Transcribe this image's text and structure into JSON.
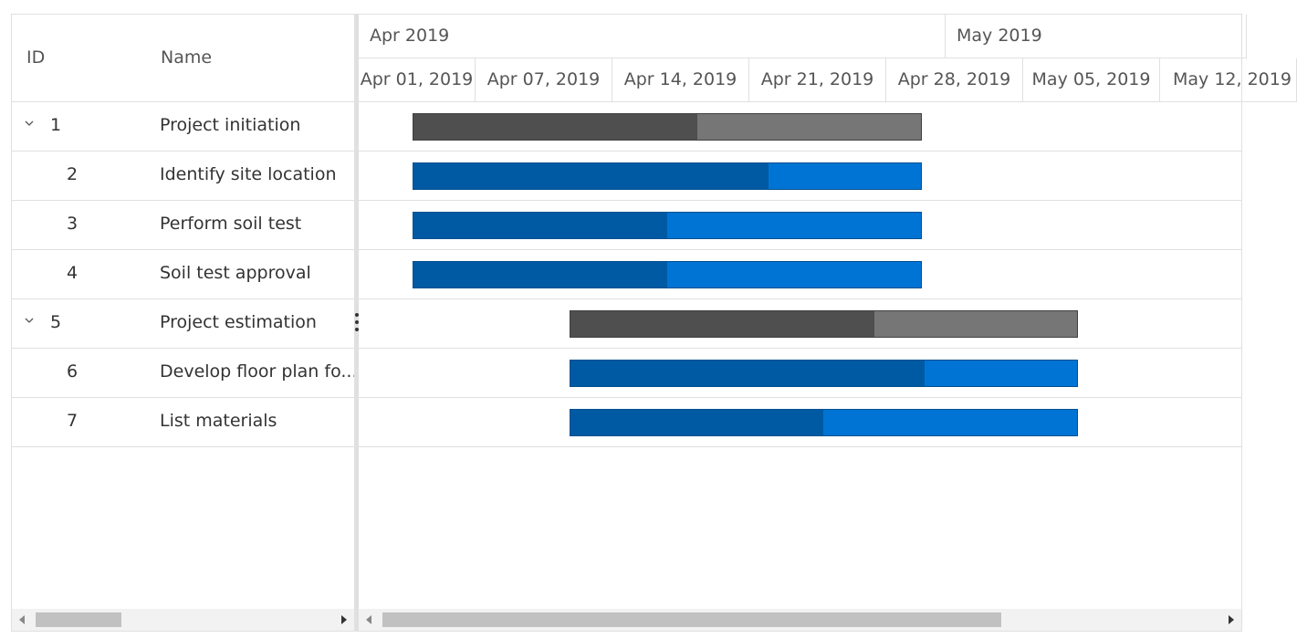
{
  "grid": {
    "columns": {
      "id": "ID",
      "name": "Name"
    },
    "rows": [
      {
        "id": "1",
        "name": "Project initiation",
        "parent": true
      },
      {
        "id": "2",
        "name": "Identify site location",
        "parent": false
      },
      {
        "id": "3",
        "name": "Perform soil test",
        "parent": false
      },
      {
        "id": "4",
        "name": "Soil test approval",
        "parent": false
      },
      {
        "id": "5",
        "name": "Project estimation",
        "parent": true
      },
      {
        "id": "6",
        "name": "Develop floor plan fo...",
        "parent": false
      },
      {
        "id": "7",
        "name": "List materials",
        "parent": false
      }
    ]
  },
  "timeline": {
    "months": [
      "Apr 2019",
      "May 2019"
    ],
    "weeks": [
      "Apr 01, 2019",
      "Apr 07, 2019",
      "Apr 14, 2019",
      "Apr 21, 2019",
      "Apr 28, 2019",
      "May 05, 2019",
      "May 12, 2019"
    ]
  },
  "tasks": [
    {
      "start": "2019-04-02",
      "end": "2019-04-28",
      "progress": 0.56,
      "parent": true
    },
    {
      "start": "2019-04-02",
      "end": "2019-04-28",
      "progress": 0.7,
      "parent": false
    },
    {
      "start": "2019-04-02",
      "end": "2019-04-28",
      "progress": 0.5,
      "parent": false
    },
    {
      "start": "2019-04-02",
      "end": "2019-04-28",
      "progress": 0.5,
      "parent": false
    },
    {
      "start": "2019-04-10",
      "end": "2019-05-06",
      "progress": 0.6,
      "parent": true
    },
    {
      "start": "2019-04-10",
      "end": "2019-05-06",
      "progress": 0.7,
      "parent": false
    },
    {
      "start": "2019-04-10",
      "end": "2019-05-06",
      "progress": 0.5,
      "parent": false
    }
  ],
  "colors": {
    "parent_bar": "#767676",
    "parent_progress": "#4f4f4f",
    "parent_border": "#404040",
    "child_bar": "#0074d4",
    "child_progress": "#005aa3",
    "child_border": "#004f8f"
  },
  "icons": {
    "expand": "chevron-down-icon",
    "splitter": "vertical-dots-icon",
    "scroll_left": "caret-left-icon",
    "scroll_right": "caret-right-icon"
  },
  "scroll": {
    "grid": 0.0,
    "chart": 0.0
  }
}
